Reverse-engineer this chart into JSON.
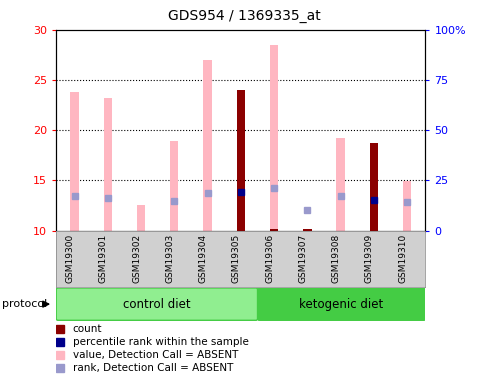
{
  "title": "GDS954 / 1369335_at",
  "samples": [
    "GSM19300",
    "GSM19301",
    "GSM19302",
    "GSM19303",
    "GSM19304",
    "GSM19305",
    "GSM19306",
    "GSM19307",
    "GSM19308",
    "GSM19309",
    "GSM19310"
  ],
  "n_control": 6,
  "n_keto": 5,
  "ylim_left": [
    10,
    30
  ],
  "ylim_right": [
    0,
    100
  ],
  "yticks_left": [
    10,
    15,
    20,
    25,
    30
  ],
  "yticks_right": [
    0,
    25,
    50,
    75,
    100
  ],
  "ytick_labels_right": [
    "0",
    "25",
    "50",
    "75",
    "100%"
  ],
  "value_absent": [
    23.8,
    23.2,
    12.6,
    18.9,
    27.0,
    null,
    28.5,
    null,
    19.2,
    null,
    14.9
  ],
  "rank_absent_y": [
    13.5,
    13.3,
    null,
    13.0,
    13.8,
    null,
    14.2,
    12.1,
    13.5,
    null,
    12.9
  ],
  "count_value": [
    null,
    null,
    null,
    null,
    null,
    24.0,
    null,
    null,
    null,
    18.7,
    null
  ],
  "count_base": 10,
  "percentile_rank_y": [
    null,
    null,
    null,
    null,
    null,
    13.9,
    null,
    null,
    null,
    13.1,
    null
  ],
  "gsm19307_tiny_bar": true,
  "gsm19306_tiny_bar": true,
  "color_pink": "#FFB6C1",
  "color_darkred": "#8B0000",
  "color_blue": "#00008B",
  "color_lightblue": "#9999CC",
  "color_green_light": "#90EE90",
  "color_green_dark": "#44CC44",
  "bg_gray": "#D0D0D0",
  "label_fontsize": 7,
  "title_fontsize": 10,
  "legend_fontsize": 7.5
}
